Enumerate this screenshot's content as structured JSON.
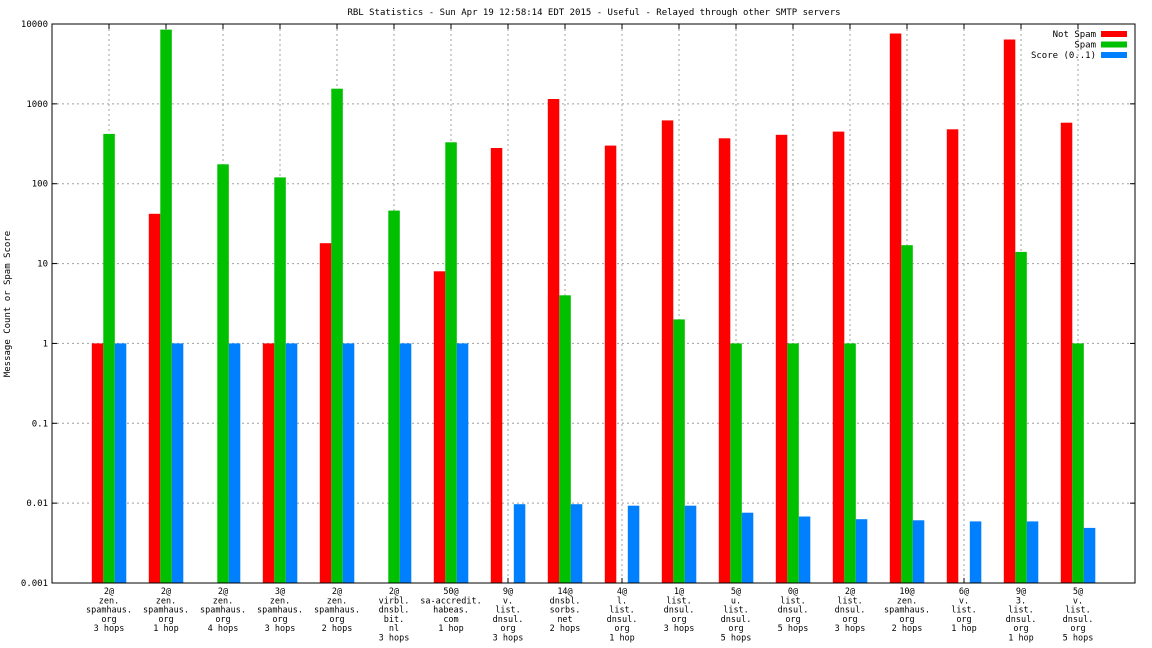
{
  "chart_data": {
    "type": "bar",
    "title": "RBL Statistics - Sun Apr 19 12:58:14 EDT 2015 - Useful - Relayed through other SMTP servers",
    "ylabel": "Message Count or Spam Score",
    "xlabel": "",
    "yscale": "log",
    "ylim": [
      0.001,
      10000
    ],
    "y_ticks": [
      "0.001",
      "0.01",
      "0.1",
      "1",
      "10",
      "100",
      "1000",
      "10000"
    ],
    "grid": true,
    "legend_position": "top-right",
    "categories": [
      [
        "2@",
        "zen.",
        "spamhaus.",
        "org",
        "3 hops"
      ],
      [
        "2@",
        "zen.",
        "spamhaus.",
        "org",
        "1 hop"
      ],
      [
        "2@",
        "zen.",
        "spamhaus.",
        "org",
        "4 hops"
      ],
      [
        "3@",
        "zen.",
        "spamhaus.",
        "org",
        "3 hops"
      ],
      [
        "2@",
        "zen.",
        "spamhaus.",
        "org",
        "2 hops"
      ],
      [
        "2@",
        "virbl.",
        "dnsbl.",
        "bit.",
        "nl",
        "3 hops"
      ],
      [
        "50@",
        "sa-accredit.",
        "habeas.",
        "com",
        "1 hop"
      ],
      [
        "9@",
        "v.",
        "list.",
        "dnsul.",
        "org",
        "3 hops"
      ],
      [
        "14@",
        "dnsbl.",
        "sorbs.",
        "net",
        "2 hops"
      ],
      [
        "4@",
        "l.",
        "list.",
        "dnsul.",
        "org",
        "1 hop"
      ],
      [
        "1@",
        "list.",
        "dnsul.",
        "org",
        "3 hops"
      ],
      [
        "5@",
        "u.",
        "list.",
        "dnsul.",
        "org",
        "5 hops"
      ],
      [
        "0@",
        "list.",
        "dnsul.",
        "org",
        "5 hops"
      ],
      [
        "2@",
        "list.",
        "dnsul.",
        "org",
        "3 hops"
      ],
      [
        "10@",
        "zen.",
        "spamhaus.",
        "org",
        "2 hops"
      ],
      [
        "6@",
        "v.",
        "list.",
        "org",
        "1 hop"
      ],
      [
        "9@",
        "3.",
        "list.",
        "dnsul.",
        "org",
        "1 hop"
      ],
      [
        "5@",
        "v.",
        "list.",
        "dnsul.",
        "org",
        "5 hops"
      ]
    ],
    "series": [
      {
        "name": "Not Spam",
        "color": "#ff0000",
        "values": [
          1,
          42,
          null,
          1,
          18,
          null,
          8,
          280,
          1150,
          300,
          620,
          370,
          410,
          450,
          7600,
          480,
          6400,
          580
        ]
      },
      {
        "name": "Spam",
        "color": "#00c000",
        "values": [
          420,
          8500,
          175,
          120,
          1550,
          46,
          330,
          null,
          4,
          null,
          2,
          1,
          1,
          1,
          17,
          null,
          14,
          1
        ]
      },
      {
        "name": "Score (0..1)",
        "color": "#0080ff",
        "values": [
          1,
          1,
          1,
          1,
          1,
          1,
          1,
          0.0097,
          0.0097,
          0.0093,
          0.0093,
          0.0076,
          0.0068,
          0.0063,
          0.0061,
          0.0059,
          0.0059,
          0.0049
        ]
      }
    ]
  }
}
